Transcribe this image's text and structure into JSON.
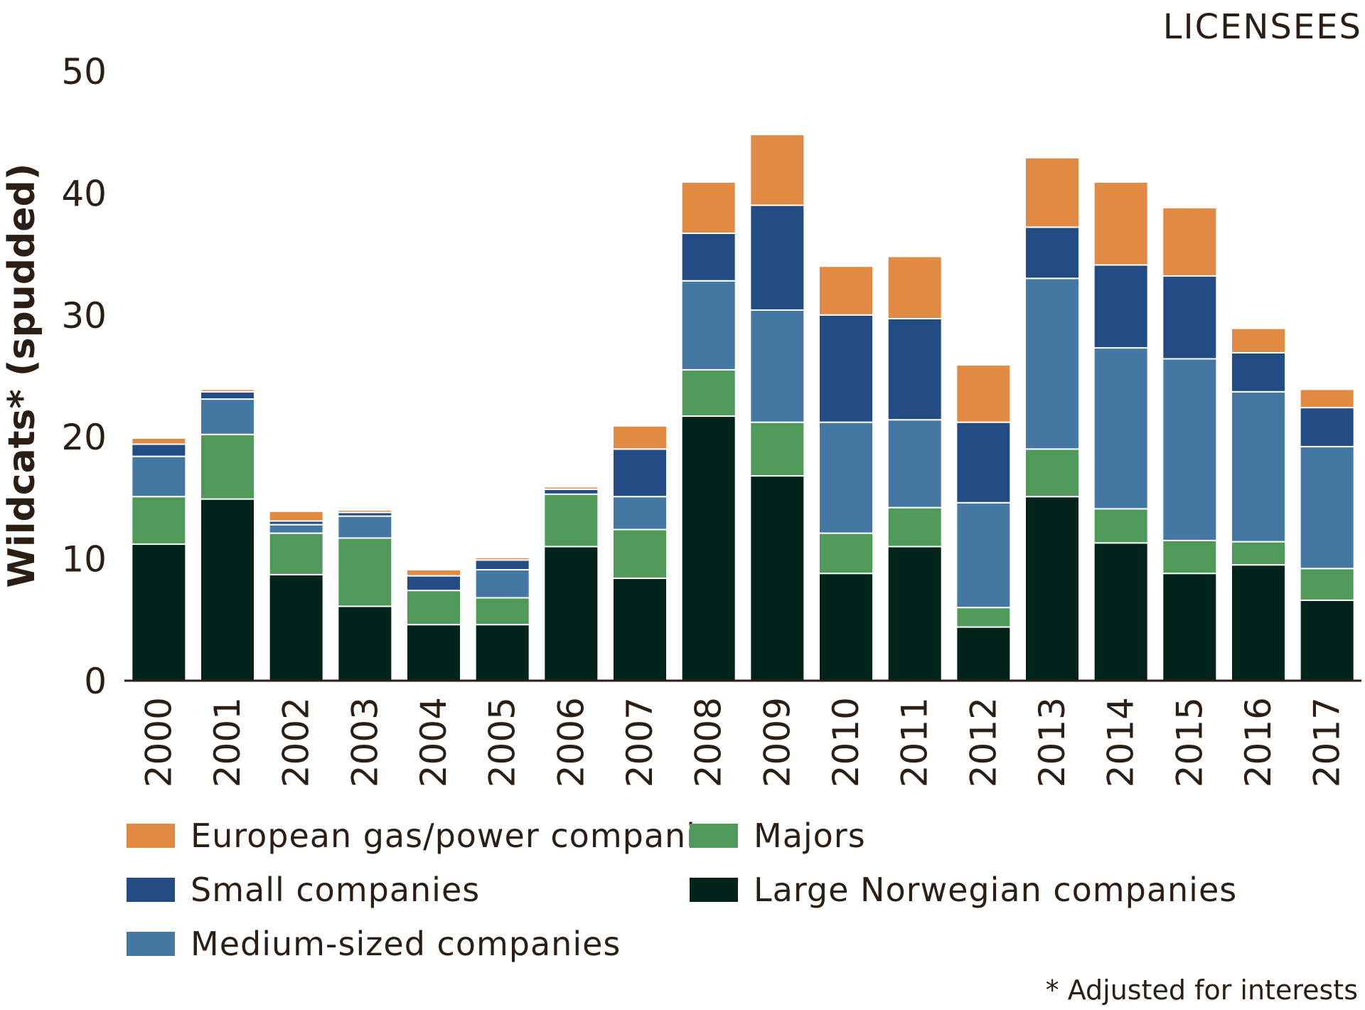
{
  "corner_label": "LICENSEES",
  "footnote": "* Adjusted for interests",
  "chart_data": {
    "type": "bar",
    "stacked": true,
    "title": "",
    "xlabel": "",
    "ylabel": "Wildcats* (spudded)",
    "ylim": [
      0,
      50
    ],
    "yticks": [
      "0",
      "10",
      "20",
      "30",
      "40",
      "50"
    ],
    "categories": [
      "2000",
      "2001",
      "2002",
      "2003",
      "2004",
      "2005",
      "2006",
      "2007",
      "2008",
      "2009",
      "2010",
      "2011",
      "2012",
      "2013",
      "2014",
      "2015",
      "2016",
      "2017"
    ],
    "series": [
      {
        "name": "Large Norwegian companies",
        "color": "#00231a",
        "values": [
          11.2,
          14.9,
          8.7,
          6.1,
          4.6,
          4.6,
          11.0,
          8.4,
          21.7,
          16.8,
          8.8,
          11.0,
          4.4,
          15.1,
          11.3,
          8.8,
          9.5,
          6.6
        ]
      },
      {
        "name": "Majors",
        "color": "#4f9a58",
        "values": [
          3.9,
          5.3,
          3.4,
          5.6,
          2.8,
          2.2,
          4.3,
          4.0,
          3.8,
          4.4,
          3.3,
          3.2,
          1.6,
          3.9,
          2.8,
          2.7,
          1.9,
          2.6
        ]
      },
      {
        "name": "Medium-sized companies",
        "color": "#4478a3",
        "values": [
          3.3,
          2.9,
          0.7,
          1.8,
          0.0,
          2.3,
          0.0,
          2.7,
          7.3,
          9.2,
          9.1,
          7.2,
          8.6,
          14.0,
          13.2,
          14.9,
          12.3,
          10.0
        ]
      },
      {
        "name": "Small companies",
        "color": "#234c84",
        "values": [
          1.0,
          0.6,
          0.3,
          0.3,
          1.2,
          0.8,
          0.4,
          3.9,
          3.9,
          8.6,
          8.8,
          8.3,
          6.6,
          4.2,
          6.8,
          6.8,
          3.2,
          3.2
        ]
      },
      {
        "name": "European gas/power companies",
        "color": "#e18a44",
        "values": [
          0.5,
          0.2,
          0.8,
          0.2,
          0.5,
          0.2,
          0.2,
          1.9,
          4.2,
          5.8,
          4.0,
          5.1,
          4.7,
          5.7,
          6.8,
          5.6,
          2.0,
          1.5
        ]
      }
    ],
    "legend": {
      "placement": "bottom",
      "entries": [
        {
          "label": "European gas/power companies",
          "color": "#e18a44"
        },
        {
          "label": "Majors",
          "color": "#4f9a58"
        },
        {
          "label": "Small companies",
          "color": "#234c84"
        },
        {
          "label": "Large Norwegian companies",
          "color": "#00231a"
        },
        {
          "label": "Medium-sized companies",
          "color": "#4478a3"
        }
      ]
    }
  }
}
